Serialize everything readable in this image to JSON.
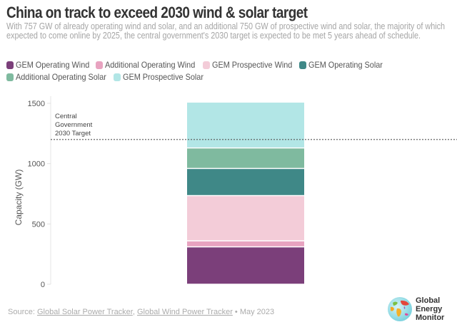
{
  "header": {
    "title": "China on track to exceed 2030 wind & solar target",
    "subtitle": "With 757 GW of already operating wind and solar, and an additional 750 GW of prospective wind and solar, the majority of which expected to come online by 2025, the central government's 2030 target is expected to be met 5 years ahead of schedule."
  },
  "legend": {
    "items": [
      {
        "label": "GEM Operating Wind",
        "color": "#7b3f7a"
      },
      {
        "label": "Additional Operating Wind",
        "color": "#e8a3c0"
      },
      {
        "label": "GEM Prospective Wind",
        "color": "#f3ccd8"
      },
      {
        "label": "GEM Operating Solar",
        "color": "#3f8887"
      },
      {
        "label": "Additional Operating Solar",
        "color": "#7fba9f"
      },
      {
        "label": "GEM Prospective Solar",
        "color": "#b2e6e6"
      }
    ]
  },
  "chart_data": {
    "type": "bar",
    "stacked": true,
    "title": "China on track to exceed 2030 wind & solar target",
    "xlabel": "",
    "ylabel": "Capacity (GW)",
    "ylim": [
      0,
      1500
    ],
    "yticks": [
      0,
      500,
      1000,
      1500
    ],
    "yticklabels": [
      "0",
      "500",
      "1000",
      "1500"
    ],
    "grid": false,
    "legend_position": "top-left",
    "categories": [
      ""
    ],
    "series": [
      {
        "name": "GEM Operating Wind",
        "values": [
          310
        ],
        "color": "#7b3f7a"
      },
      {
        "name": "Additional Operating Wind",
        "values": [
          50
        ],
        "color": "#e8a3c0"
      },
      {
        "name": "GEM Prospective Wind",
        "values": [
          375
        ],
        "color": "#f3ccd8"
      },
      {
        "name": "GEM Operating Solar",
        "values": [
          225
        ],
        "color": "#3f8887"
      },
      {
        "name": "Additional Operating Solar",
        "values": [
          170
        ],
        "color": "#7fba9f"
      },
      {
        "name": "GEM Prospective Solar",
        "values": [
          380
        ],
        "color": "#b2e6e6"
      }
    ],
    "reference_line": {
      "value": 1200,
      "style": "dotted",
      "label_lines": [
        "Central",
        "Government",
        "2030 Target"
      ]
    }
  },
  "footer": {
    "source_prefix": "Source: ",
    "link1": "Global Solar Power Tracker",
    "separator": ", ",
    "link2": "Global Wind Power Tracker",
    "date": " • May 2023"
  },
  "logo": {
    "line1": "Global",
    "line2": "Energy",
    "line3": "Monitor"
  }
}
